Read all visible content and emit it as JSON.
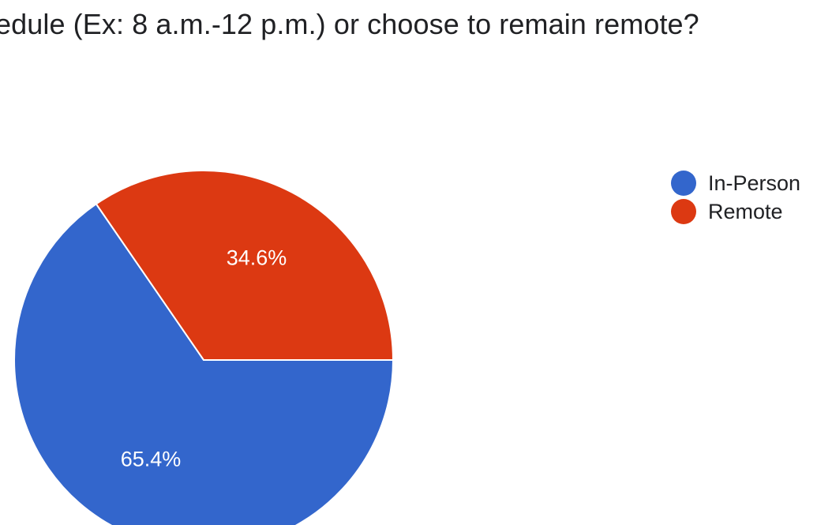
{
  "question": {
    "title": "edule (Ex: 8 a.m.-12 p.m.) or choose to remain remote?"
  },
  "chart_data": {
    "type": "pie",
    "title": "edule (Ex: 8 a.m.-12 p.m.) or choose to remain remote?",
    "legend_position": "right",
    "slices": [
      {
        "name": "In-Person",
        "value": 65.4,
        "label": "65.4%",
        "color": "#3366cc"
      },
      {
        "name": "Remote",
        "value": 34.6,
        "label": "34.6%",
        "color": "#dc3912"
      }
    ]
  },
  "legend": {
    "items": [
      {
        "label": "In-Person",
        "color": "#3366cc"
      },
      {
        "label": "Remote",
        "color": "#dc3912"
      }
    ]
  }
}
